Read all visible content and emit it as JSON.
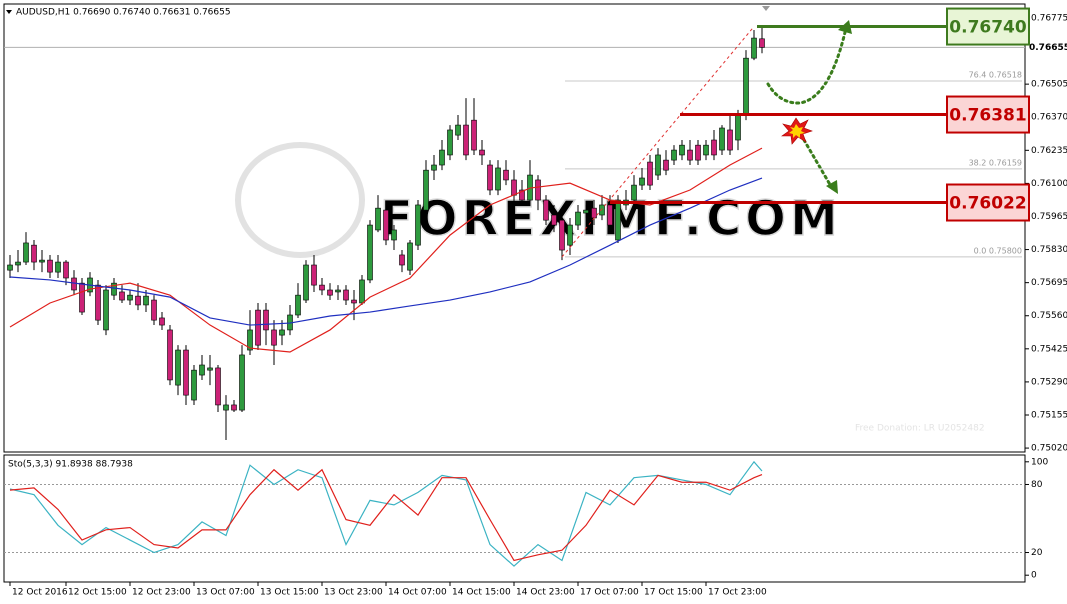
{
  "chart_data": [
    {
      "type": "candlestick",
      "title": "AUDUSD,H1  0.76690 0.76740 0.76631 0.76655",
      "watermark": "FOREXIMF.COM",
      "annotation": "Free Donation: LR U2052482",
      "categories": [
        "12 Oct 2016",
        null,
        null,
        null,
        null,
        null,
        null,
        "12 Oct 15:00",
        null,
        null,
        null,
        null,
        null,
        null,
        null,
        "12 Oct 23:00",
        null,
        null,
        null,
        null,
        null,
        null,
        null,
        "13 Oct 07:00",
        null,
        null,
        null,
        null,
        null,
        null,
        null,
        "13 Oct 15:00",
        null,
        null,
        null,
        null,
        null,
        null,
        null,
        "13 Oct 23:00",
        null,
        null,
        null,
        null,
        null,
        null,
        null,
        "14 Oct 07:00",
        null,
        null,
        null,
        null,
        null,
        null,
        null,
        "14 Oct 15:00",
        null,
        null,
        null,
        null,
        null,
        null,
        null,
        "14 Oct 23:00",
        null,
        null,
        null,
        null,
        null,
        null,
        null,
        "17 Oct 07:00",
        null,
        null,
        null,
        null,
        null,
        null,
        null,
        "17 Oct 15:00",
        null,
        null,
        null,
        null,
        null,
        null,
        null,
        "17 Oct 23:00",
        null,
        null,
        null,
        null,
        null,
        null,
        null
      ],
      "open": [
        0.75746,
        0.75767,
        0.75779,
        0.75848,
        0.75779,
        0.75787,
        0.75738,
        0.75779,
        0.75714,
        0.75693,
        0.75657,
        0.75685,
        0.75502,
        0.75644,
        0.75657,
        0.75624,
        0.7564,
        0.75604,
        0.75624,
        0.75551,
        0.75502,
        0.75277,
        0.7542,
        0.75216,
        0.75318,
        0.75338,
        0.75347,
        0.75175,
        0.75196,
        0.75175,
        0.7542,
        0.75583,
        0.75583,
        0.75502,
        0.75481,
        0.75502,
        0.75563,
        0.75624,
        0.75767,
        0.75685,
        0.75665,
        0.75657,
        0.75665,
        0.75624,
        0.75612,
        0.75706,
        0.7591,
        0.75991,
        0.75869,
        0.75808,
        0.75746,
        0.75848,
        0.75991,
        0.76154,
        0.76175,
        0.76216,
        0.76297,
        0.76338,
        0.76358,
        0.76236,
        0.76175,
        0.76073,
        0.76154,
        0.76114,
        0.76073,
        0.76032,
        0.76114,
        0.76032,
        0.75971,
        0.7595,
        0.75848,
        0.7593,
        0.75979,
        0.75999,
        0.75971,
        0.76012,
        0.75869,
        0.76012,
        0.76032,
        0.76093,
        0.76187,
        0.76134,
        0.76195,
        0.76195,
        0.76216,
        0.76236,
        0.76256,
        0.76216,
        0.76277,
        0.76236,
        0.76318,
        0.76277,
        0.76379,
        0.76611,
        0.7669
      ],
      "high": [
        0.75808,
        0.75828,
        0.75901,
        0.75869,
        0.75828,
        0.75808,
        0.75808,
        0.75787,
        0.75746,
        0.75714,
        0.75738,
        0.75706,
        0.75685,
        0.75714,
        0.75685,
        0.75665,
        0.75693,
        0.75665,
        0.75644,
        0.75575,
        0.75522,
        0.7544,
        0.7544,
        0.75359,
        0.754,
        0.754,
        0.75359,
        0.75236,
        0.75216,
        0.7544,
        0.75583,
        0.75612,
        0.75612,
        0.75542,
        0.75542,
        0.75604,
        0.75693,
        0.75787,
        0.75808,
        0.75714,
        0.75693,
        0.75685,
        0.75685,
        0.75665,
        0.75726,
        0.7595,
        0.76052,
        0.76012,
        0.7593,
        0.75828,
        0.75869,
        0.76032,
        0.76195,
        0.76216,
        0.76277,
        0.76338,
        0.76379,
        0.76448,
        0.76448,
        0.76277,
        0.76195,
        0.76195,
        0.76195,
        0.76154,
        0.76114,
        0.76195,
        0.76134,
        0.76052,
        0.76012,
        0.75971,
        0.75959,
        0.76012,
        0.76012,
        0.76032,
        0.76052,
        0.76052,
        0.76052,
        0.76073,
        0.76134,
        0.76163,
        0.76216,
        0.76244,
        0.76236,
        0.76256,
        0.76277,
        0.76277,
        0.76277,
        0.76277,
        0.76318,
        0.76338,
        0.76379,
        0.764,
        0.76644,
        0.76726,
        0.7674
      ],
      "low": [
        0.75714,
        0.75738,
        0.75767,
        0.75746,
        0.75738,
        0.75714,
        0.75714,
        0.75685,
        0.75644,
        0.75563,
        0.7564,
        0.75522,
        0.75481,
        0.75624,
        0.75612,
        0.75604,
        0.75583,
        0.75575,
        0.75522,
        0.75502,
        0.75277,
        0.75236,
        0.75196,
        0.75196,
        0.75298,
        0.75277,
        0.75167,
        0.75053,
        0.75167,
        0.75167,
        0.754,
        0.7542,
        0.7544,
        0.75359,
        0.7544,
        0.75481,
        0.75551,
        0.75612,
        0.75657,
        0.75644,
        0.75624,
        0.75624,
        0.75604,
        0.75542,
        0.75604,
        0.75693,
        0.75901,
        0.75848,
        0.75828,
        0.75738,
        0.75726,
        0.75828,
        0.75983,
        0.76114,
        0.76154,
        0.76195,
        0.76277,
        0.76195,
        0.76216,
        0.76175,
        0.76052,
        0.76052,
        0.76093,
        0.76012,
        0.76012,
        0.76012,
        0.75991,
        0.7593,
        0.75901,
        0.75787,
        0.75808,
        0.7591,
        0.75959,
        0.7593,
        0.7595,
        0.75901,
        0.75857,
        0.75991,
        0.76012,
        0.76073,
        0.76073,
        0.76114,
        0.76134,
        0.76175,
        0.76195,
        0.76175,
        0.76175,
        0.76195,
        0.76195,
        0.76216,
        0.76216,
        0.76236,
        0.76358,
        0.76603,
        0.76631
      ],
      "close": [
        0.75767,
        0.75779,
        0.75857,
        0.75779,
        0.75787,
        0.75738,
        0.75779,
        0.75714,
        0.75665,
        0.75575,
        0.75714,
        0.75542,
        0.75665,
        0.75693,
        0.75624,
        0.75644,
        0.75604,
        0.7564,
        0.75542,
        0.75522,
        0.75298,
        0.7542,
        0.75236,
        0.75338,
        0.75359,
        0.75347,
        0.75196,
        0.75196,
        0.75175,
        0.754,
        0.75502,
        0.7544,
        0.75502,
        0.7544,
        0.75502,
        0.75563,
        0.75644,
        0.75767,
        0.75685,
        0.75665,
        0.75644,
        0.75665,
        0.75624,
        0.75612,
        0.75706,
        0.7593,
        0.75999,
        0.75869,
        0.7591,
        0.75767,
        0.75857,
        0.76012,
        0.76154,
        0.76175,
        0.76236,
        0.76318,
        0.76338,
        0.76216,
        0.76236,
        0.76216,
        0.76073,
        0.76163,
        0.76114,
        0.76052,
        0.76032,
        0.76134,
        0.76032,
        0.7595,
        0.7593,
        0.75828,
        0.7593,
        0.75983,
        0.75991,
        0.75959,
        0.76012,
        0.7593,
        0.76032,
        0.76032,
        0.76093,
        0.76122,
        0.76093,
        0.76216,
        0.76154,
        0.76236,
        0.76256,
        0.76195,
        0.76195,
        0.76256,
        0.76216,
        0.76326,
        0.76236,
        0.76379,
        0.76611,
        0.76693,
        0.76655
      ],
      "up_color": "#2e9a3e",
      "down_color": "#cc2277",
      "moving_averages": [
        {
          "color": "#e0201c",
          "x": [
            0,
            5,
            10,
            15,
            20,
            25,
            30,
            35,
            40,
            45,
            50,
            55,
            60,
            65,
            70,
            75,
            80,
            85,
            90,
            94
          ],
          "values": [
            0.75514,
            0.75612,
            0.75669,
            0.75693,
            0.75644,
            0.75522,
            0.75428,
            0.75412,
            0.75502,
            0.75636,
            0.75714,
            0.75889,
            0.76012,
            0.76081,
            0.76101,
            0.76032,
            0.76012,
            0.76073,
            0.76175,
            0.76244
          ]
        },
        {
          "color": "#1f2fc0",
          "x": [
            0,
            5,
            10,
            15,
            20,
            25,
            30,
            35,
            40,
            45,
            50,
            55,
            60,
            65,
            70,
            75,
            80,
            85,
            90,
            94
          ],
          "values": [
            0.75718,
            0.75706,
            0.75685,
            0.75665,
            0.75636,
            0.75551,
            0.75522,
            0.7553,
            0.75559,
            0.75575,
            0.756,
            0.75624,
            0.75657,
            0.75698,
            0.75767,
            0.75848,
            0.7593,
            0.75999,
            0.76073,
            0.76122
          ]
        }
      ],
      "ylim": [
        0.75004,
        0.76832
      ],
      "yticks": [
        0.76775,
        0.76505,
        {
          "value": 0.7637,
          "label": "0.76370"
        },
        0.76235,
        {
          "value": 0.761,
          "label": "0.76100"
        },
        0.75965,
        {
          "value": 0.7583,
          "label": "0.75830"
        },
        0.75695,
        {
          "value": 0.7556,
          "label": "0.75560"
        },
        0.75425,
        {
          "value": 0.7529,
          "label": "0.75290"
        },
        0.75155,
        {
          "value": 0.7502,
          "label": "0.75020"
        }
      ],
      "current_price": {
        "value": 0.76655,
        "label": "0.76655"
      },
      "levels": [
        {
          "value": 0.7674,
          "label": "0.76740",
          "color": "#3e7a1e",
          "fill": "#e8f5d6"
        },
        {
          "value": 0.76381,
          "label": "0.76381",
          "color": "#c00000",
          "fill": "#fbd5d5"
        },
        {
          "value": 0.76022,
          "label": "0.76022",
          "color": "#c00000",
          "fill": "#fbd5d5"
        }
      ],
      "fib": [
        {
          "value": 0.76518,
          "label": "76.4  0.76518"
        },
        {
          "value": 0.76159,
          "label": "38.2  0.76159"
        },
        {
          "value": 0.758,
          "label": "0.0  0.75800"
        }
      ]
    },
    {
      "type": "line",
      "title": "Sto(5,3,3) 91.8938 88.7938",
      "x": [
        0,
        3,
        6,
        9,
        12,
        15,
        18,
        21,
        24,
        27,
        30,
        33,
        36,
        39,
        42,
        45,
        48,
        51,
        54,
        57,
        60,
        63,
        66,
        69,
        72,
        75,
        78,
        81,
        84,
        87,
        90,
        93,
        94
      ],
      "series": [
        {
          "color": "#3bb3c3",
          "values": [
            76,
            71,
            44,
            27,
            42,
            31,
            20,
            27,
            47,
            35,
            97,
            80,
            93,
            86,
            27,
            66,
            62,
            73,
            88,
            84,
            27,
            8,
            27,
            13,
            73,
            62,
            86,
            88,
            84,
            80,
            71,
            100,
            91.8938
          ]
        },
        {
          "color": "#e0201c",
          "values": [
            75,
            77,
            58,
            31,
            40,
            42,
            27,
            24,
            40,
            40,
            71,
            93,
            75,
            93,
            49,
            44,
            71,
            53,
            86,
            86,
            49,
            13,
            18,
            22,
            44,
            75,
            62,
            88,
            82,
            82,
            75,
            86,
            88.7938
          ]
        }
      ],
      "ylim": [
        -6,
        106
      ],
      "yticks": [
        100,
        80,
        20,
        0
      ]
    }
  ]
}
